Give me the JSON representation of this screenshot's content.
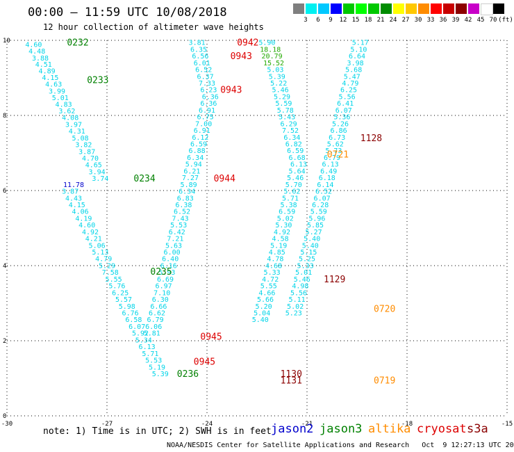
{
  "header": {
    "title": "00:00 – 11:59 UTC 10/08/2018",
    "subtitle": "12 hour collection of altimeter wave heights"
  },
  "legend": {
    "colors": [
      "#7f7f7f",
      "#00f0f0",
      "#00c8ff",
      "#0000ff",
      "#00c800",
      "#00ff00",
      "#00c800",
      "#008c00",
      "#ffff00",
      "#ffc800",
      "#ff8c00",
      "#ff0000",
      "#c80000",
      "#8c0000",
      "#c800c8",
      "#ffffff",
      "#000000"
    ],
    "labels": [
      "3",
      "6",
      "9",
      "12",
      "15",
      "18",
      "21",
      "24",
      "27",
      "30",
      "33",
      "36",
      "39",
      "42",
      "45",
      "70",
      "(ft)"
    ]
  },
  "note": "note: 1) Time is in UTC; 2) SWH is in feet",
  "satellites": [
    {
      "name": "jason2",
      "color": "#0000cc"
    },
    {
      "name": "jason3",
      "color": "#008000"
    },
    {
      "name": "altika",
      "color": "#ff8c00"
    },
    {
      "name": "cryosat",
      "color": "#dd0000"
    },
    {
      "name": "s3a",
      "color": "#8b0000"
    }
  ],
  "footer": "NOAA/NESDIS Center for Satellite Applications and Research   Oct  9 12:27:13 UTC 2018",
  "chart_data": {
    "type": "scatter",
    "xlim": [
      -30,
      -15
    ],
    "ylim": [
      0,
      10
    ],
    "xticks": [
      -30,
      -27,
      -24,
      -21,
      -18,
      -15
    ],
    "xtick_labels": [
      "-30",
      "-27",
      "-24",
      "-21",
      "-18",
      "-15"
    ],
    "yticks": [
      0,
      2,
      4,
      6,
      8,
      10
    ],
    "ytick_labels": [
      "0",
      "2",
      "4",
      "6",
      "8",
      "10"
    ],
    "grid": true,
    "tracks": [
      {
        "color": "#00d4e8",
        "values": [
          [
            -29.2,
            9.9,
            "4.60"
          ],
          [
            -29.1,
            9.72,
            "4.48"
          ],
          [
            -29.0,
            9.54,
            "3.88"
          ],
          [
            -28.9,
            9.37,
            "4.51"
          ],
          [
            -28.8,
            9.19,
            "4.89"
          ],
          [
            -28.7,
            9.02,
            "4.15"
          ],
          [
            -28.6,
            8.84,
            "4.63"
          ],
          [
            -28.5,
            8.66,
            "3.99"
          ],
          [
            -28.4,
            8.48,
            "5.01"
          ],
          [
            -28.3,
            8.31,
            "4.83"
          ],
          [
            -28.2,
            8.13,
            "3.62"
          ],
          [
            -28.1,
            7.95,
            "4.08"
          ],
          [
            -28.0,
            7.77,
            "3.97"
          ],
          [
            -27.9,
            7.59,
            "4.31"
          ],
          [
            -27.8,
            7.41,
            "5.08"
          ],
          [
            -27.7,
            7.23,
            "3.82"
          ],
          [
            -27.6,
            7.05,
            "3.87"
          ],
          [
            -27.5,
            6.87,
            "4.70"
          ],
          [
            -27.4,
            6.69,
            "4.65"
          ],
          [
            -27.3,
            6.51,
            "3.94"
          ],
          [
            -27.2,
            6.33,
            "3.74"
          ]
        ]
      },
      {
        "color": "#0000cc",
        "values": [
          [
            -28.0,
            6.17,
            "11.78"
          ]
        ]
      },
      {
        "color": "#00d4e8",
        "values": [
          [
            -28.1,
            5.99,
            "3.87"
          ],
          [
            -28.0,
            5.81,
            "4.43"
          ],
          [
            -27.9,
            5.63,
            "4.15"
          ],
          [
            -27.8,
            5.45,
            "4.06"
          ],
          [
            -27.7,
            5.27,
            "4.19"
          ],
          [
            -27.6,
            5.09,
            "4.60"
          ],
          [
            -27.5,
            4.91,
            "4.92"
          ],
          [
            -27.4,
            4.73,
            "4.21"
          ],
          [
            -27.3,
            4.55,
            "5.06"
          ],
          [
            -27.2,
            4.37,
            "5.13"
          ],
          [
            -27.1,
            4.19,
            "4.79"
          ],
          [
            -27.0,
            4.01,
            "5.29"
          ],
          [
            -26.9,
            3.83,
            "7.58"
          ],
          [
            -26.8,
            3.65,
            "5.55"
          ],
          [
            -26.7,
            3.47,
            "5.76"
          ],
          [
            -26.6,
            3.29,
            "6.25"
          ],
          [
            -26.5,
            3.11,
            "5.57"
          ],
          [
            -26.4,
            2.93,
            "5.98"
          ],
          [
            -26.3,
            2.75,
            "6.76"
          ],
          [
            -26.2,
            2.57,
            "6.58"
          ],
          [
            -26.1,
            2.39,
            "6.07"
          ],
          [
            -26.0,
            2.21,
            "5.92"
          ],
          [
            -25.9,
            2.03,
            "5.34"
          ],
          [
            -25.8,
            1.85,
            "6.13"
          ],
          [
            -25.7,
            1.67,
            "5.71"
          ],
          [
            -25.6,
            1.49,
            "5.53"
          ],
          [
            -25.5,
            1.31,
            "5.19"
          ],
          [
            -25.4,
            1.13,
            "5.39"
          ]
        ]
      },
      {
        "color": "#00d4e8",
        "values": [
          [
            -24.3,
            9.95,
            "3.81"
          ],
          [
            -24.25,
            9.77,
            "6.35"
          ],
          [
            -24.2,
            9.59,
            "6.56"
          ],
          [
            -24.15,
            9.41,
            "6.01"
          ],
          [
            -24.1,
            9.23,
            "6.52"
          ],
          [
            -24.05,
            9.05,
            "6.37"
          ],
          [
            -24.0,
            8.87,
            "7.33"
          ],
          [
            -23.95,
            8.69,
            "6.23"
          ],
          [
            -23.9,
            8.51,
            "6.36"
          ],
          [
            -23.95,
            8.33,
            "6.36"
          ],
          [
            -24.0,
            8.15,
            "6.91"
          ],
          [
            -24.05,
            7.97,
            "6.75"
          ],
          [
            -24.1,
            7.79,
            "7.00"
          ],
          [
            -24.15,
            7.61,
            "6.91"
          ],
          [
            -24.2,
            7.43,
            "6.12"
          ],
          [
            -24.25,
            7.25,
            "6.59"
          ],
          [
            -24.3,
            7.07,
            "6.88"
          ],
          [
            -24.35,
            6.89,
            "6.34"
          ],
          [
            -24.4,
            6.71,
            "5.94"
          ],
          [
            -24.45,
            6.53,
            "6.21"
          ],
          [
            -24.5,
            6.35,
            "7.27"
          ],
          [
            -24.55,
            6.17,
            "5.89"
          ],
          [
            -24.6,
            5.99,
            "6.34"
          ],
          [
            -24.65,
            5.81,
            "6.83"
          ],
          [
            -24.7,
            5.63,
            "6.38"
          ],
          [
            -24.75,
            5.45,
            "6.52"
          ],
          [
            -24.8,
            5.27,
            "7.43"
          ],
          [
            -24.85,
            5.09,
            "5.53"
          ],
          [
            -24.9,
            4.91,
            "6.42"
          ],
          [
            -24.95,
            4.73,
            "7.21"
          ],
          [
            -25.0,
            4.55,
            "5.63"
          ],
          [
            -25.05,
            4.37,
            "6.00"
          ],
          [
            -25.1,
            4.19,
            "6.40"
          ],
          [
            -25.15,
            4.01,
            "6.16"
          ],
          [
            -25.2,
            3.83,
            "5.93"
          ],
          [
            -25.25,
            3.65,
            "6.69"
          ],
          [
            -25.3,
            3.47,
            "6.97"
          ],
          [
            -25.35,
            3.29,
            "7.10"
          ],
          [
            -25.4,
            3.11,
            "6.30"
          ],
          [
            -25.45,
            2.93,
            "6.66"
          ],
          [
            -25.5,
            2.75,
            "6.62"
          ],
          [
            -25.55,
            2.57,
            "6.79"
          ],
          [
            -25.6,
            2.39,
            "6.06"
          ],
          [
            -25.65,
            2.21,
            "5.81"
          ]
        ]
      },
      {
        "color": "#00d4e8",
        "values": [
          [
            -22.2,
            9.95,
            "5.90"
          ]
        ]
      },
      {
        "color": "#22aa00",
        "values": [
          [
            -22.1,
            9.77,
            "18.18"
          ],
          [
            -22.05,
            9.59,
            "20.79"
          ],
          [
            -22.0,
            9.41,
            "15.52"
          ]
        ]
      },
      {
        "color": "#00d4e8",
        "values": [
          [
            -21.95,
            9.23,
            "5.03"
          ],
          [
            -21.9,
            9.05,
            "5.39"
          ],
          [
            -21.85,
            8.87,
            "5.22"
          ],
          [
            -21.8,
            8.69,
            "5.46"
          ],
          [
            -21.75,
            8.51,
            "5.29"
          ],
          [
            -21.7,
            8.33,
            "5.59"
          ],
          [
            -21.65,
            8.15,
            "5.78"
          ],
          [
            -21.6,
            7.97,
            "5.43"
          ],
          [
            -21.55,
            7.79,
            "6.29"
          ],
          [
            -21.5,
            7.61,
            "7.52"
          ],
          [
            -21.45,
            7.43,
            "6.34"
          ],
          [
            -21.4,
            7.25,
            "6.82"
          ],
          [
            -21.35,
            7.07,
            "6.59"
          ],
          [
            -21.3,
            6.89,
            "6.68"
          ],
          [
            -21.25,
            6.71,
            "6.13"
          ],
          [
            -21.3,
            6.53,
            "5.64"
          ],
          [
            -21.35,
            6.35,
            "5.46"
          ],
          [
            -21.4,
            6.17,
            "5.70"
          ],
          [
            -21.45,
            5.99,
            "5.62"
          ],
          [
            -21.5,
            5.81,
            "5.71"
          ],
          [
            -21.55,
            5.63,
            "5.38"
          ],
          [
            -21.6,
            5.45,
            "6.59"
          ],
          [
            -21.65,
            5.27,
            "5.02"
          ],
          [
            -21.7,
            5.09,
            "5.30"
          ],
          [
            -21.75,
            4.91,
            "4.92"
          ],
          [
            -21.8,
            4.73,
            "4.58"
          ],
          [
            -21.85,
            4.55,
            "5.19"
          ],
          [
            -21.9,
            4.37,
            "4.85"
          ],
          [
            -21.95,
            4.19,
            "4.78"
          ],
          [
            -22.0,
            4.01,
            "4.68"
          ],
          [
            -22.05,
            3.83,
            "5.33"
          ],
          [
            -22.1,
            3.65,
            "4.72"
          ],
          [
            -22.15,
            3.47,
            "5.55"
          ],
          [
            -22.2,
            3.29,
            "4.66"
          ],
          [
            -22.25,
            3.11,
            "5.66"
          ],
          [
            -22.3,
            2.93,
            "5.20"
          ],
          [
            -22.35,
            2.75,
            "5.04"
          ],
          [
            -22.4,
            2.57,
            "5.40"
          ]
        ]
      },
      {
        "color": "#00d4e8",
        "values": [
          [
            -19.4,
            9.95,
            "5.17"
          ],
          [
            -19.45,
            9.77,
            "5.10"
          ],
          [
            -19.5,
            9.59,
            "6.64"
          ],
          [
            -19.55,
            9.41,
            "3.98"
          ],
          [
            -19.6,
            9.23,
            "5.68"
          ],
          [
            -19.65,
            9.05,
            "5.47"
          ],
          [
            -19.7,
            8.87,
            "4.79"
          ],
          [
            -19.75,
            8.69,
            "6.25"
          ],
          [
            -19.8,
            8.51,
            "5.56"
          ],
          [
            -19.85,
            8.33,
            "6.41"
          ],
          [
            -19.9,
            8.15,
            "6.07"
          ],
          [
            -19.95,
            7.97,
            "5.36"
          ],
          [
            -20.0,
            7.79,
            "5.26"
          ],
          [
            -20.05,
            7.61,
            "6.86"
          ],
          [
            -20.1,
            7.43,
            "6.73"
          ],
          [
            -20.15,
            7.25,
            "5.62"
          ],
          [
            -20.2,
            7.07,
            "5.73"
          ]
        ]
      },
      {
        "color": "#00d4e8",
        "values": [
          [
            -20.25,
            6.89,
            "6.79"
          ],
          [
            -20.3,
            6.71,
            "6.13"
          ],
          [
            -20.35,
            6.53,
            "6.49"
          ],
          [
            -20.4,
            6.35,
            "6.18"
          ],
          [
            -20.45,
            6.17,
            "6.14"
          ],
          [
            -20.5,
            5.99,
            "6.52"
          ],
          [
            -20.55,
            5.81,
            "6.07"
          ],
          [
            -20.6,
            5.63,
            "6.28"
          ],
          [
            -20.65,
            5.45,
            "5.59"
          ],
          [
            -20.7,
            5.27,
            "5.96"
          ],
          [
            -20.75,
            5.09,
            "5.85"
          ],
          [
            -20.8,
            4.91,
            "5.27"
          ],
          [
            -20.85,
            4.73,
            "5.40"
          ],
          [
            -20.9,
            4.55,
            "5.40"
          ],
          [
            -20.95,
            4.37,
            "5.15"
          ],
          [
            -21.0,
            4.19,
            "5.25"
          ],
          [
            -21.05,
            4.01,
            "5.33"
          ],
          [
            -21.1,
            3.83,
            "5.01"
          ],
          [
            -21.15,
            3.65,
            "5.46"
          ],
          [
            -21.2,
            3.47,
            "4.98"
          ],
          [
            -21.25,
            3.29,
            "5.56"
          ],
          [
            -21.3,
            3.11,
            "5.11"
          ],
          [
            -21.35,
            2.93,
            "5.02"
          ],
          [
            -21.4,
            2.75,
            "5.23"
          ]
        ]
      }
    ],
    "time_labels": [
      {
        "x": -28.2,
        "y": 9.95,
        "text": "0232",
        "color": "#008000"
      },
      {
        "x": -27.6,
        "y": 8.95,
        "text": "0233",
        "color": "#008000"
      },
      {
        "x": -26.2,
        "y": 6.33,
        "text": "0234",
        "color": "#008000"
      },
      {
        "x": -25.7,
        "y": 3.85,
        "text": "0235",
        "color": "#008000"
      },
      {
        "x": -24.9,
        "y": 1.13,
        "text": "0236",
        "color": "#008000"
      },
      {
        "x": -23.1,
        "y": 9.95,
        "text": "0942",
        "color": "#dd0000"
      },
      {
        "x": -23.3,
        "y": 9.59,
        "text": "0943",
        "color": "#dd0000"
      },
      {
        "x": -23.6,
        "y": 8.69,
        "text": "0943",
        "color": "#dd0000"
      },
      {
        "x": -23.8,
        "y": 6.33,
        "text": "0944",
        "color": "#dd0000"
      },
      {
        "x": -24.2,
        "y": 2.12,
        "text": "0945",
        "color": "#dd0000"
      },
      {
        "x": -24.4,
        "y": 1.45,
        "text": "0945",
        "color": "#dd0000"
      },
      {
        "x": -19.4,
        "y": 7.41,
        "text": "1128",
        "color": "#8b0000"
      },
      {
        "x": -20.5,
        "y": 3.65,
        "text": "1129",
        "color": "#8b0000"
      },
      {
        "x": -21.8,
        "y": 1.13,
        "text": "1130",
        "color": "#8b0000"
      },
      {
        "x": -21.8,
        "y": 0.95,
        "text": "1131",
        "color": "#8b0000"
      },
      {
        "x": -20.4,
        "y": 6.97,
        "text": "0721",
        "color": "#ff8c00"
      },
      {
        "x": -19.0,
        "y": 2.86,
        "text": "0720",
        "color": "#ff8c00"
      },
      {
        "x": -19.0,
        "y": 0.95,
        "text": "0719",
        "color": "#ff8c00"
      }
    ]
  }
}
